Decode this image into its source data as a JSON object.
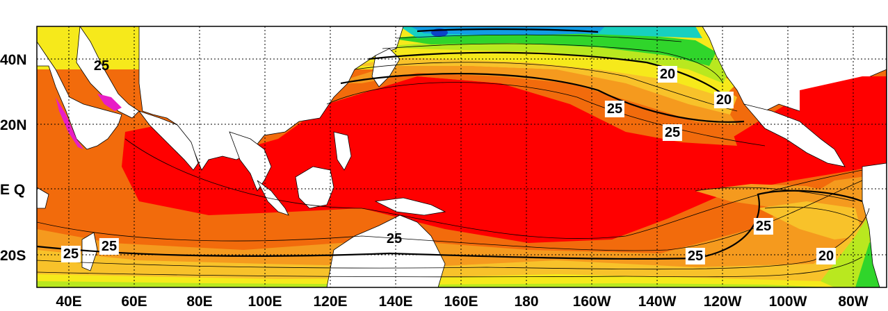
{
  "map": {
    "latitude_labels": [
      "40N",
      "20N",
      "E Q",
      "20S"
    ],
    "longitude_labels": [
      "40E",
      "60E",
      "80E",
      "100E",
      "120E",
      "140E",
      "160E",
      "180",
      "160W",
      "140W",
      "120W",
      "100W",
      "80W"
    ],
    "contour_labels": [
      "25",
      "20",
      "20",
      "25",
      "25",
      "25",
      "25",
      "25",
      "25",
      "25",
      "20"
    ]
  },
  "colors": {
    "land": "#ffffff",
    "band_hot": "#ff0000",
    "band_warm": "#f26b0c",
    "band_orange": "#f59a1e",
    "band_amber": "#f8c22a",
    "band_yellow": "#f6e91b",
    "band_lime": "#b9e81f",
    "band_green": "#30d52b",
    "band_cyan": "#17d0c0",
    "band_blue": "#129ce4",
    "band_deep": "#0b44c8",
    "band_magenta": "#e81ec6",
    "grid": "#000000"
  }
}
